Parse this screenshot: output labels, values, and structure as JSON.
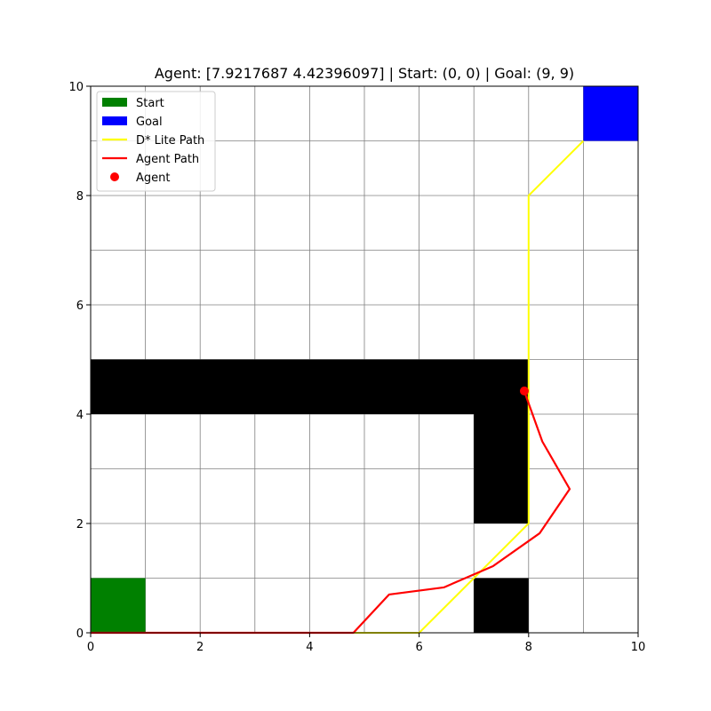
{
  "chart_data": {
    "type": "line",
    "title": "Agent: [7.9217687  4.42396097] | Start: (0, 0) | Goal: (9, 9)",
    "xlabel": "",
    "ylabel": "",
    "xlim": [
      0,
      10
    ],
    "ylim": [
      0,
      10
    ],
    "x_ticks": [
      "0",
      "2",
      "4",
      "6",
      "8",
      "10"
    ],
    "y_ticks": [
      "0",
      "2",
      "4",
      "6",
      "8",
      "10"
    ],
    "grid": true,
    "grid_step": 1,
    "obstacles": [
      {
        "x": 0,
        "y": 4,
        "w": 8,
        "h": 1
      },
      {
        "x": 7,
        "y": 2,
        "w": 1,
        "h": 2
      },
      {
        "x": 7,
        "y": 0,
        "w": 1,
        "h": 1
      }
    ],
    "start_cell": {
      "x": 0,
      "y": 0,
      "w": 1,
      "h": 1
    },
    "goal_cell": {
      "x": 9,
      "y": 9,
      "w": 1,
      "h": 1
    },
    "dstar_path": [
      [
        0,
        0
      ],
      [
        6,
        0
      ],
      [
        8,
        2
      ],
      [
        8,
        8
      ],
      [
        9,
        9
      ]
    ],
    "agent_path": [
      [
        0,
        0
      ],
      [
        4.8,
        0
      ],
      [
        5.45,
        0.7
      ],
      [
        6.45,
        0.83
      ],
      [
        7.35,
        1.22
      ],
      [
        8.2,
        1.82
      ],
      [
        8.75,
        2.63
      ],
      [
        8.25,
        3.5
      ],
      [
        7.92,
        4.42
      ]
    ],
    "agent": [
      7.9217687,
      4.42396097
    ],
    "colors": {
      "start": "#008000",
      "goal": "#0000ff",
      "obstacle": "#000000",
      "dstar_path": "#ffff00",
      "agent_path": "#ff0000",
      "agent": "#ff0000",
      "grid": "#808080"
    },
    "legend": {
      "position": "upper-left",
      "entries": [
        {
          "label": "Start",
          "kind": "patch",
          "color": "#008000"
        },
        {
          "label": "Goal",
          "kind": "patch",
          "color": "#0000ff"
        },
        {
          "label": "D* Lite Path",
          "kind": "line",
          "color": "#ffff00"
        },
        {
          "label": "Agent Path",
          "kind": "line",
          "color": "#ff0000"
        },
        {
          "label": "Agent",
          "kind": "marker",
          "color": "#ff0000"
        }
      ]
    }
  }
}
